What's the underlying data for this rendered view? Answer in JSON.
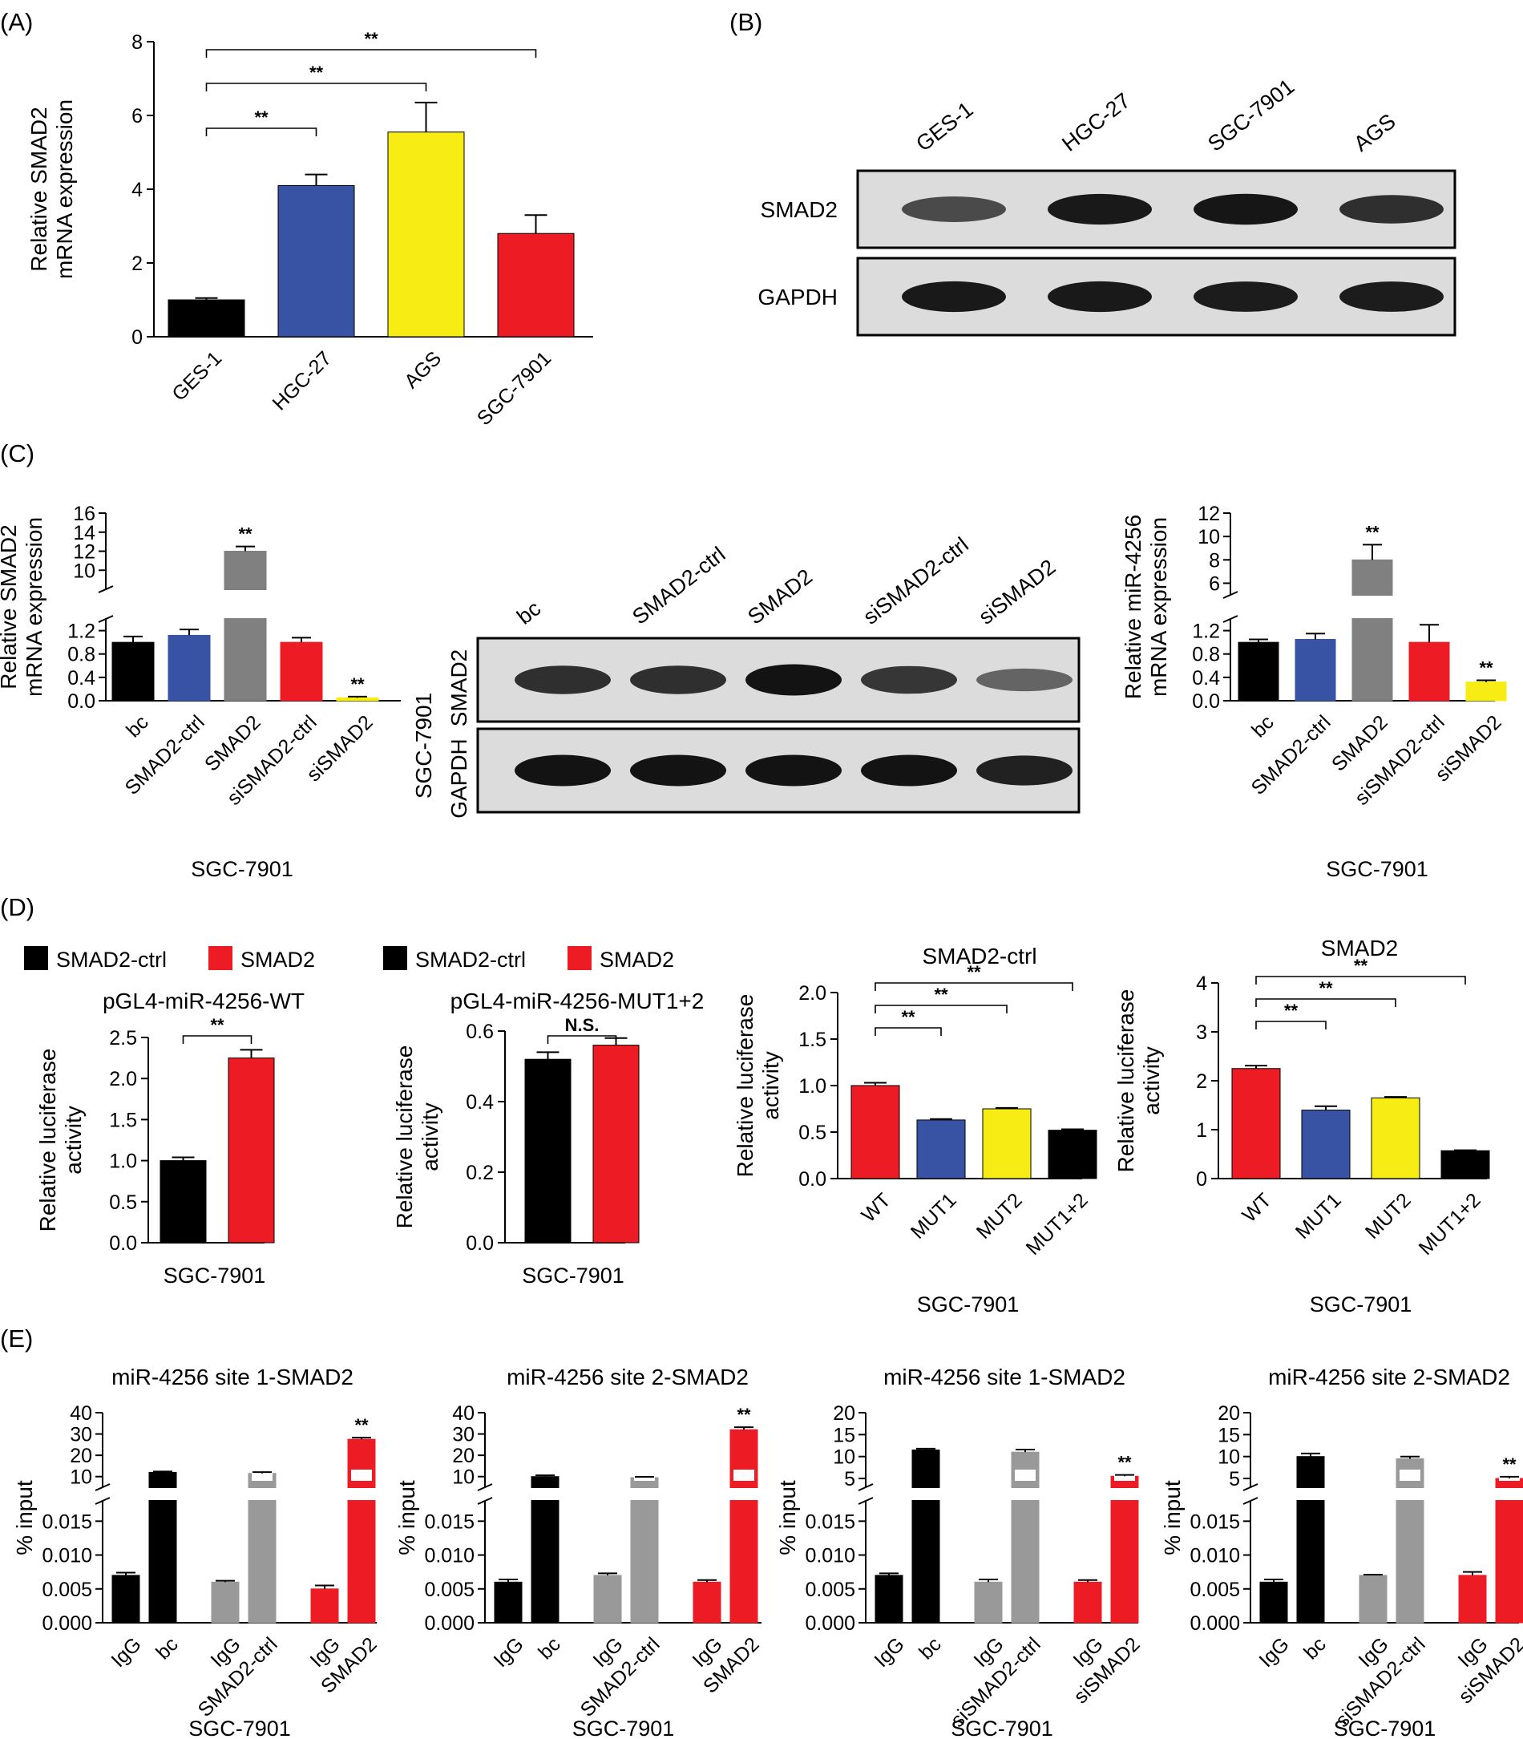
{
  "panels": [
    {
      "id": "A",
      "label": "(A)",
      "type": "bar",
      "ylabel_lines": [
        "Relative SMAD2",
        "mRNA expression"
      ],
      "xlabel": "",
      "title": "",
      "categories": [
        "GES-1",
        "HGC-27",
        "AGS",
        "SGC-7901"
      ],
      "values": [
        1.0,
        4.1,
        5.55,
        2.8
      ],
      "errors": [
        0.05,
        0.3,
        0.8,
        0.5
      ],
      "colors": [
        "#000000",
        "#3953a4",
        "#f7ec13",
        "#ed1c24"
      ],
      "ylim": [
        0,
        8
      ],
      "yticks": [
        "0",
        "2",
        "4",
        "6",
        "8"
      ],
      "rotate_x": true,
      "significance": [
        {
          "from": 0,
          "to": 1,
          "label": "**"
        },
        {
          "from": 0,
          "to": 2,
          "label": "**"
        },
        {
          "from": 0,
          "to": 3,
          "label": "**"
        }
      ]
    },
    {
      "id": "C1",
      "label": "(C)",
      "type": "broken-bar",
      "ylabel_lines": [
        "Relative SMAD2",
        "mRNA expression"
      ],
      "xlabel": "SGC-7901",
      "title": "",
      "categories": [
        "bc",
        "SMAD2-ctrl",
        "SMAD2",
        "siSMAD2-ctrl",
        "siSMAD2"
      ],
      "values": [
        1.0,
        1.12,
        12.0,
        1.0,
        0.05
      ],
      "errors": [
        0.1,
        0.1,
        0.5,
        0.08,
        0.02
      ],
      "colors": [
        "#000000",
        "#3953a4",
        "#808080",
        "#ed1c24",
        "#f7ec13"
      ],
      "lower_range": [
        0,
        1.4
      ],
      "lower_ticks": [
        "0.0",
        "0.4",
        "0.8",
        "1.2"
      ],
      "upper_range": [
        8,
        16
      ],
      "upper_ticks": [
        "10",
        "12",
        "14",
        "16"
      ],
      "sig_above": [
        {
          "index": 2,
          "label": "**"
        },
        {
          "index": 4,
          "label": "**"
        }
      ]
    },
    {
      "id": "C3",
      "label": "",
      "type": "broken-bar",
      "ylabel_lines": [
        "Relative miR-4256",
        "mRNA expression"
      ],
      "xlabel": "SGC-7901",
      "title": "",
      "categories": [
        "bc",
        "SMAD2-ctrl",
        "SMAD2",
        "siSMAD2-ctrl",
        "siSMAD2"
      ],
      "values": [
        1.0,
        1.05,
        8.0,
        1.0,
        0.32
      ],
      "errors": [
        0.05,
        0.1,
        1.3,
        0.3,
        0.03
      ],
      "colors": [
        "#000000",
        "#3953a4",
        "#808080",
        "#ed1c24",
        "#f7ec13"
      ],
      "lower_range": [
        0,
        1.4
      ],
      "lower_ticks": [
        "0.0",
        "0.4",
        "0.8",
        "1.2"
      ],
      "upper_range": [
        5,
        12
      ],
      "upper_ticks": [
        "6",
        "8",
        "10",
        "12"
      ],
      "sig_above": [
        {
          "index": 2,
          "label": "**"
        },
        {
          "index": 4,
          "label": "**"
        }
      ]
    },
    {
      "id": "D1",
      "label": "(D)",
      "type": "bar",
      "title": "pGL4-miR-4256-WT",
      "ylabel_lines": [
        "Relative luciferase",
        "activity"
      ],
      "xlabel": "SGC-7901",
      "categories": [
        "SMAD2-ctrl",
        "SMAD2"
      ],
      "show_xticks": false,
      "values": [
        1.0,
        2.25
      ],
      "errors": [
        0.04,
        0.1
      ],
      "colors": [
        "#000000",
        "#ed1c24"
      ],
      "ylim": [
        0,
        2.5
      ],
      "yticks": [
        "0.0",
        "0.5",
        "1.0",
        "1.5",
        "2.0",
        "2.5"
      ],
      "significance": [
        {
          "from": 0,
          "to": 1,
          "label": "**"
        }
      ]
    },
    {
      "id": "D2",
      "label": "",
      "type": "bar",
      "title": "pGL4-miR-4256-MUT1+2",
      "ylabel_lines": [
        "Relative luciferase",
        "activity"
      ],
      "xlabel": "SGC-7901",
      "categories": [
        "SMAD2-ctrl",
        "SMAD2"
      ],
      "show_xticks": false,
      "values": [
        0.52,
        0.56
      ],
      "errors": [
        0.02,
        0.02
      ],
      "colors": [
        "#000000",
        "#ed1c24"
      ],
      "ylim": [
        0,
        0.6
      ],
      "yticks": [
        "0.0",
        "0.2",
        "0.4",
        "0.6"
      ],
      "significance": [
        {
          "from": 0,
          "to": 1,
          "label": "N.S."
        }
      ]
    },
    {
      "id": "D3",
      "label": "",
      "type": "bar",
      "title": "SMAD2-ctrl",
      "ylabel_lines": [
        "Relative luciferase",
        "activity"
      ],
      "xlabel": "SGC-7901",
      "categories": [
        "WT",
        "MUT1",
        "MUT2",
        "MUT1+2"
      ],
      "rotate_x": true,
      "values": [
        1.0,
        0.63,
        0.75,
        0.52
      ],
      "errors": [
        0.03,
        0.01,
        0.01,
        0.01
      ],
      "colors": [
        "#ed1c24",
        "#3953a4",
        "#f7ec13",
        "#000000"
      ],
      "ylim": [
        0,
        2.0
      ],
      "yticks": [
        "0.0",
        "0.5",
        "1.0",
        "1.5",
        "2.0"
      ],
      "significance": [
        {
          "from": 0,
          "to": 1,
          "label": "**"
        },
        {
          "from": 0,
          "to": 2,
          "label": "**"
        },
        {
          "from": 0,
          "to": 3,
          "label": "**"
        }
      ]
    },
    {
      "id": "D4",
      "label": "",
      "type": "bar",
      "title": "SMAD2",
      "ylabel_lines": [
        "Relative luciferase",
        "activity"
      ],
      "xlabel": "SGC-7901",
      "categories": [
        "WT",
        "MUT1",
        "MUT2",
        "MUT1+2"
      ],
      "rotate_x": true,
      "values": [
        2.25,
        1.4,
        1.65,
        0.57
      ],
      "errors": [
        0.06,
        0.08,
        0.02,
        0.01
      ],
      "colors": [
        "#ed1c24",
        "#3953a4",
        "#f7ec13",
        "#000000"
      ],
      "ylim": [
        0,
        4
      ],
      "yticks": [
        "0",
        "1",
        "2",
        "3",
        "4"
      ],
      "significance": [
        {
          "from": 0,
          "to": 1,
          "label": "**"
        },
        {
          "from": 0,
          "to": 2,
          "label": "**"
        },
        {
          "from": 0,
          "to": 3,
          "label": "**"
        }
      ]
    },
    {
      "id": "E1",
      "label": "(E)",
      "type": "broken-bar",
      "title": "miR-4256 site 1-SMAD2",
      "ylabel_lines": [
        "% input"
      ],
      "xlabel": "SGC-7901",
      "categories": [
        "IgG",
        "bc",
        "IgG",
        "SMAD2-ctrl",
        "IgG",
        "SMAD2"
      ],
      "groups": [
        [
          0,
          1
        ],
        [
          2,
          3
        ],
        [
          4,
          5
        ]
      ],
      "values": [
        0.007,
        12.0,
        0.006,
        11.5,
        0.005,
        27.5
      ],
      "errors": [
        0.0004,
        0.4,
        0.0002,
        0.6,
        0.0005,
        0.8
      ],
      "colors": [
        "#000000",
        "#000000",
        "#999999",
        "#999999",
        "#ed1c24",
        "#ed1c24"
      ],
      "lower_range": [
        0,
        0.018
      ],
      "lower_ticks": [
        "0.000",
        "0.005",
        "0.010",
        "0.015"
      ],
      "upper_range": [
        5,
        40
      ],
      "upper_ticks": [
        "10",
        "20",
        "30",
        "40"
      ],
      "sig_above": [
        {
          "index": 5,
          "label": "**"
        }
      ]
    },
    {
      "id": "E2",
      "label": "",
      "type": "broken-bar",
      "title": "miR-4256 site 2-SMAD2",
      "ylabel_lines": [
        "% input"
      ],
      "xlabel": "SGC-7901",
      "categories": [
        "IgG",
        "bc",
        "IgG",
        "SMAD2-ctrl",
        "IgG",
        "SMAD2"
      ],
      "groups": [
        [
          0,
          1
        ],
        [
          2,
          3
        ],
        [
          4,
          5
        ]
      ],
      "values": [
        0.006,
        10.0,
        0.007,
        9.5,
        0.006,
        32.0
      ],
      "errors": [
        0.0004,
        0.6,
        0.0003,
        0.4,
        0.0003,
        1.2
      ],
      "colors": [
        "#000000",
        "#000000",
        "#999999",
        "#999999",
        "#ed1c24",
        "#ed1c24"
      ],
      "lower_range": [
        0,
        0.018
      ],
      "lower_ticks": [
        "0.000",
        "0.005",
        "0.010",
        "0.015"
      ],
      "upper_range": [
        5,
        40
      ],
      "upper_ticks": [
        "10",
        "20",
        "30",
        "40"
      ],
      "sig_above": [
        {
          "index": 5,
          "label": "**"
        }
      ]
    },
    {
      "id": "E3",
      "label": "",
      "type": "broken-bar",
      "title": "miR-4256 site 1-SMAD2",
      "ylabel_lines": [
        "% input"
      ],
      "xlabel": "SGC-7901",
      "categories": [
        "IgG",
        "bc",
        "IgG",
        "siSMAD2-ctrl",
        "IgG",
        "siSMAD2"
      ],
      "groups": [
        [
          0,
          1
        ],
        [
          2,
          3
        ],
        [
          4,
          5
        ]
      ],
      "values": [
        0.007,
        11.5,
        0.006,
        11.0,
        0.006,
        5.5
      ],
      "errors": [
        0.0003,
        0.3,
        0.0004,
        0.6,
        0.0003,
        0.3
      ],
      "colors": [
        "#000000",
        "#000000",
        "#999999",
        "#999999",
        "#ed1c24",
        "#ed1c24"
      ],
      "lower_range": [
        0,
        0.018
      ],
      "lower_ticks": [
        "0.000",
        "0.005",
        "0.010",
        "0.015"
      ],
      "upper_range": [
        3,
        20
      ],
      "upper_ticks": [
        "5",
        "10",
        "15",
        "20"
      ],
      "sig_above": [
        {
          "index": 5,
          "label": "**"
        }
      ]
    },
    {
      "id": "E4",
      "label": "",
      "type": "broken-bar",
      "title": "miR-4256 site 2-SMAD2",
      "ylabel_lines": [
        "% input"
      ],
      "xlabel": "SGC-7901",
      "categories": [
        "IgG",
        "bc",
        "IgG",
        "siSMAD2-ctrl",
        "IgG",
        "siSMAD2"
      ],
      "groups": [
        [
          0,
          1
        ],
        [
          2,
          3
        ],
        [
          4,
          5
        ]
      ],
      "values": [
        0.006,
        10.0,
        0.007,
        9.5,
        0.007,
        5.0
      ],
      "errors": [
        0.0004,
        0.7,
        0.0001,
        0.5,
        0.0005,
        0.4
      ],
      "colors": [
        "#000000",
        "#000000",
        "#999999",
        "#999999",
        "#ed1c24",
        "#ed1c24"
      ],
      "lower_range": [
        0,
        0.018
      ],
      "lower_ticks": [
        "0.000",
        "0.005",
        "0.010",
        "0.015"
      ],
      "upper_range": [
        3,
        20
      ],
      "upper_ticks": [
        "5",
        "10",
        "15",
        "20"
      ],
      "sig_above": [
        {
          "index": 5,
          "label": "**"
        }
      ]
    }
  ],
  "blots": [
    {
      "id": "B",
      "label": "(B)",
      "lanes": [
        "GES-1",
        "HGC-27",
        "SGC-7901",
        "AGS"
      ],
      "proteins": [
        "SMAD2",
        "GAPDH"
      ],
      "intensity": [
        [
          0.55,
          0.9,
          0.92,
          0.75
        ],
        [
          0.9,
          0.9,
          0.88,
          0.88
        ]
      ]
    },
    {
      "id": "C2",
      "label": "",
      "cell_line": "SGC-7901",
      "lanes": [
        "bc",
        "SMAD2-ctrl",
        "SMAD2",
        "siSMAD2-ctrl",
        "siSMAD2"
      ],
      "proteins": [
        "SMAD2",
        "GAPDH"
      ],
      "intensity": [
        [
          0.75,
          0.75,
          0.95,
          0.7,
          0.35
        ],
        [
          0.95,
          0.95,
          0.95,
          0.95,
          0.85
        ]
      ]
    }
  ],
  "legends": [
    {
      "id": "D-legend-1",
      "entries": [
        {
          "label": "SMAD2-ctrl",
          "color": "#000000"
        },
        {
          "label": "SMAD2",
          "color": "#ed1c24"
        }
      ]
    },
    {
      "id": "D-legend-2",
      "entries": [
        {
          "label": "SMAD2-ctrl",
          "color": "#000000"
        },
        {
          "label": "SMAD2",
          "color": "#ed1c24"
        }
      ]
    }
  ]
}
